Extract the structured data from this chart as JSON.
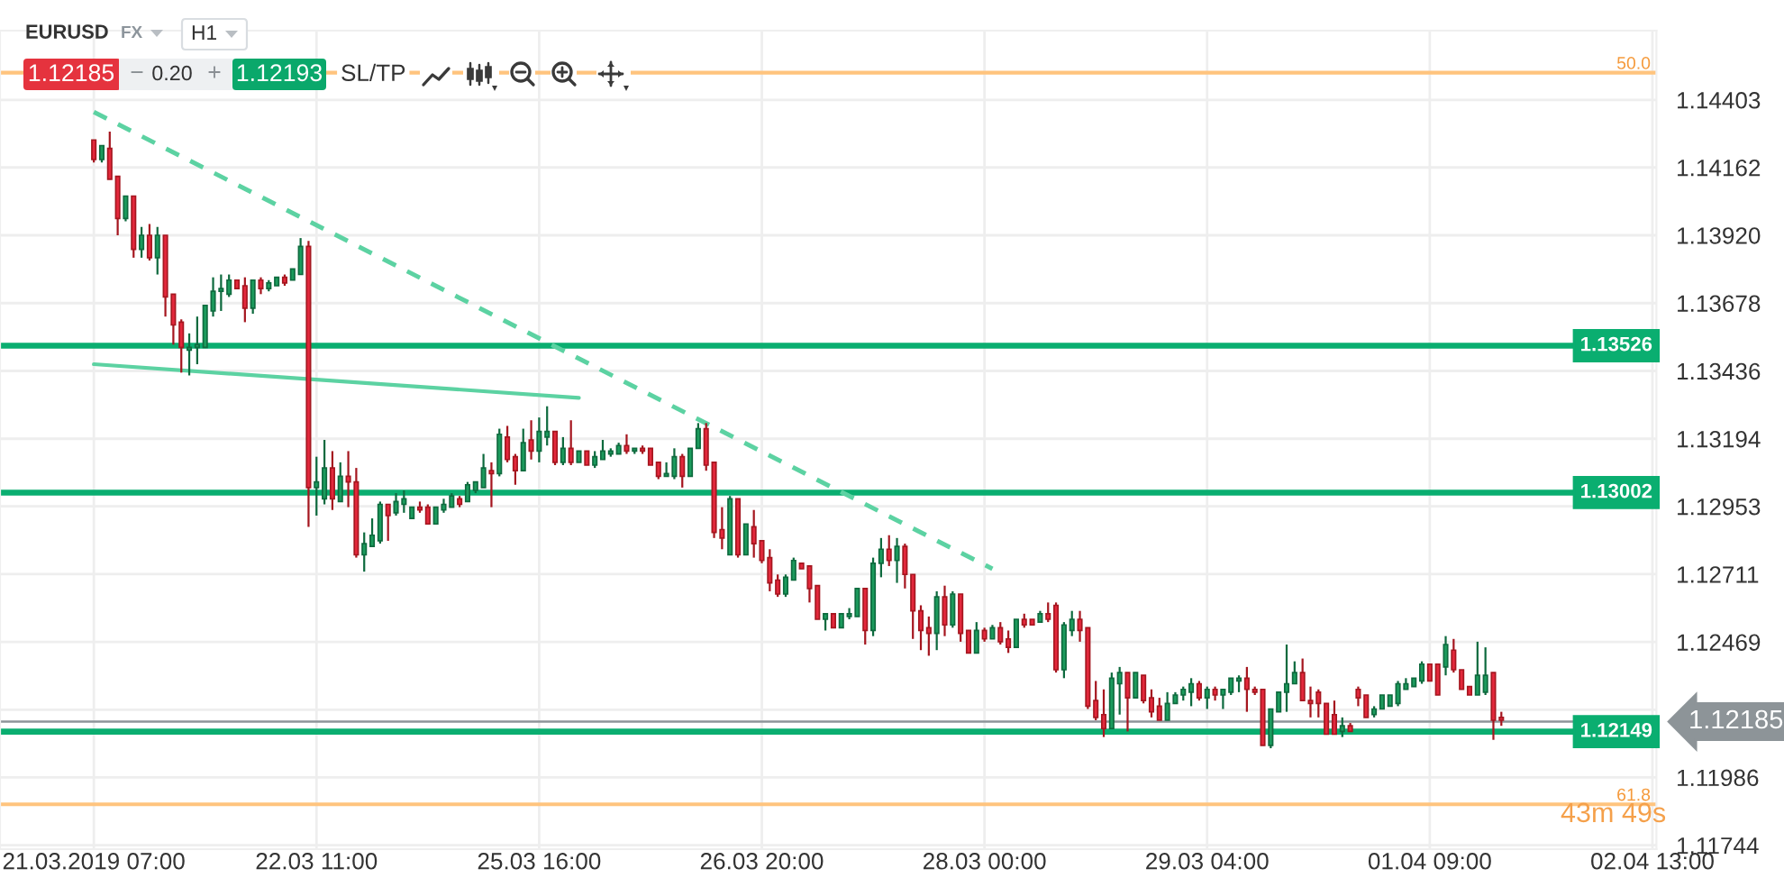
{
  "chart_data": {
    "type": "candlestick",
    "title": "EURUSD",
    "categories": [
      "21.03.2019 07:00",
      null,
      null,
      null,
      null,
      null,
      null,
      null,
      null,
      null,
      null,
      null,
      null,
      null,
      null,
      null,
      null,
      null,
      null,
      null,
      null,
      null,
      null,
      null,
      null,
      null,
      null,
      null,
      "22.03 11:00",
      null,
      null,
      null,
      null,
      null,
      null,
      null,
      null,
      null,
      null,
      null,
      null,
      null,
      null,
      null,
      null,
      null,
      null,
      null,
      null,
      null,
      null,
      null,
      null,
      null,
      null,
      null,
      "25.03 16:00",
      null,
      null,
      null,
      null,
      null,
      null,
      null,
      null,
      null,
      null,
      null,
      null,
      null,
      null,
      null,
      null,
      null,
      null,
      null,
      null,
      null,
      null,
      null,
      null,
      null,
      null,
      null,
      "26.03 20:00",
      null,
      null,
      null,
      null,
      null,
      null,
      null,
      null,
      null,
      null,
      null,
      null,
      null,
      null,
      null,
      null,
      null,
      null,
      null,
      null,
      null,
      null,
      null,
      null,
      null,
      null,
      null,
      "28.03 00:00",
      null,
      null,
      null,
      null,
      null,
      null,
      null,
      null,
      null,
      null,
      null,
      null,
      null,
      null,
      null,
      null,
      null,
      null,
      null,
      null,
      null,
      null,
      null,
      null,
      null,
      null,
      null,
      "29.03 04:00",
      null,
      null,
      null,
      null,
      null,
      null,
      null,
      null,
      null,
      null,
      null,
      null,
      null,
      null,
      null,
      null,
      null,
      null,
      null,
      null,
      null,
      null,
      null,
      null,
      null,
      null,
      null,
      "01.04 09:00",
      null,
      null,
      null,
      null,
      null,
      null,
      null,
      null,
      null,
      null,
      null,
      null,
      null,
      null,
      null,
      null,
      null,
      null,
      null,
      null,
      null,
      null,
      null,
      null,
      null,
      null,
      null,
      "02.04 13:00"
    ],
    "ohlc": [
      [
        1.1426,
        1.1426,
        1.1418,
        1.1419
      ],
      [
        1.1419,
        1.1424,
        1.1418,
        1.1424
      ],
      [
        1.1423,
        1.1429,
        1.1412,
        1.1412
      ],
      [
        1.1413,
        1.1413,
        1.1392,
        1.1398
      ],
      [
        1.1398,
        1.1406,
        1.1397,
        1.1406
      ],
      [
        1.1406,
        1.1406,
        1.1384,
        1.1387
      ],
      [
        1.1387,
        1.1395,
        1.1384,
        1.1392
      ],
      [
        1.1392,
        1.1396,
        1.1383,
        1.1384
      ],
      [
        1.1384,
        1.1395,
        1.1378,
        1.1392
      ],
      [
        1.1392,
        1.1392,
        1.1363,
        1.137
      ],
      [
        1.1371,
        1.1371,
        1.1353,
        1.136
      ],
      [
        1.1361,
        1.1362,
        1.1343,
        1.1352
      ],
      [
        1.1351,
        1.1357,
        1.1342,
        1.1352
      ],
      [
        1.1352,
        1.1363,
        1.1346,
        1.1353
      ],
      [
        1.1352,
        1.1367,
        1.1352,
        1.1367
      ],
      [
        1.1365,
        1.1377,
        1.1363,
        1.1372
      ],
      [
        1.1372,
        1.1378,
        1.1365,
        1.1373
      ],
      [
        1.1371,
        1.1378,
        1.137,
        1.1376
      ],
      [
        1.1376,
        1.1376,
        1.1373,
        1.1373
      ],
      [
        1.1374,
        1.1377,
        1.1361,
        1.1366
      ],
      [
        1.1366,
        1.1376,
        1.1364,
        1.1376
      ],
      [
        1.1376,
        1.1377,
        1.1371,
        1.1373
      ],
      [
        1.1373,
        1.1376,
        1.1372,
        1.1375
      ],
      [
        1.1374,
        1.1377,
        1.1374,
        1.1377
      ],
      [
        1.1377,
        1.1378,
        1.1374,
        1.1375
      ],
      [
        1.1376,
        1.138,
        1.1376,
        1.138
      ],
      [
        1.1378,
        1.1391,
        1.1378,
        1.1388
      ],
      [
        1.1388,
        1.139,
        1.1288,
        1.1302
      ],
      [
        1.1302,
        1.1313,
        1.1292,
        1.1304
      ],
      [
        1.1298,
        1.1319,
        1.1296,
        1.1309
      ],
      [
        1.1309,
        1.1315,
        1.1294,
        1.1298
      ],
      [
        1.1297,
        1.1311,
        1.1297,
        1.1306
      ],
      [
        1.1306,
        1.1315,
        1.1295,
        1.1304
      ],
      [
        1.1304,
        1.1309,
        1.1277,
        1.1278
      ],
      [
        1.1278,
        1.1286,
        1.1272,
        1.1282
      ],
      [
        1.1281,
        1.1291,
        1.1281,
        1.1285
      ],
      [
        1.1283,
        1.1297,
        1.1282,
        1.1296
      ],
      [
        1.1296,
        1.1296,
        1.1283,
        1.1292
      ],
      [
        1.1293,
        1.13,
        1.1292,
        1.1297
      ],
      [
        1.1296,
        1.1301,
        1.1293,
        1.1298
      ],
      [
        1.1291,
        1.1295,
        1.1291,
        1.1295
      ],
      [
        1.1295,
        1.1297,
        1.1293,
        1.1294
      ],
      [
        1.1295,
        1.1296,
        1.1289,
        1.1289
      ],
      [
        1.1289,
        1.1295,
        1.1289,
        1.1295
      ],
      [
        1.1294,
        1.1298,
        1.1293,
        1.1296
      ],
      [
        1.1295,
        1.13,
        1.1295,
        1.1299
      ],
      [
        1.1298,
        1.1299,
        1.1295,
        1.1296
      ],
      [
        1.1297,
        1.1304,
        1.1297,
        1.1303
      ],
      [
        1.1301,
        1.1304,
        1.13,
        1.1304
      ],
      [
        1.1302,
        1.1314,
        1.1302,
        1.1309
      ],
      [
        1.1308,
        1.1311,
        1.1295,
        1.1307
      ],
      [
        1.1307,
        1.1323,
        1.1306,
        1.1321
      ],
      [
        1.132,
        1.1324,
        1.1311,
        1.1312
      ],
      [
        1.1313,
        1.1314,
        1.1303,
        1.1308
      ],
      [
        1.1308,
        1.1323,
        1.1308,
        1.1318
      ],
      [
        1.1319,
        1.1326,
        1.1312,
        1.1315
      ],
      [
        1.1315,
        1.1327,
        1.1311,
        1.1322
      ],
      [
        1.132,
        1.1331,
        1.1317,
        1.1322
      ],
      [
        1.1322,
        1.1322,
        1.131,
        1.1311
      ],
      [
        1.1311,
        1.132,
        1.131,
        1.1316
      ],
      [
        1.1316,
        1.1326,
        1.131,
        1.1311
      ],
      [
        1.1311,
        1.1315,
        1.1311,
        1.1315
      ],
      [
        1.1315,
        1.1315,
        1.131,
        1.131
      ],
      [
        1.131,
        1.1315,
        1.1309,
        1.1313
      ],
      [
        1.1312,
        1.1319,
        1.1312,
        1.1315
      ],
      [
        1.1314,
        1.1316,
        1.1313,
        1.1315
      ],
      [
        1.1314,
        1.1318,
        1.1314,
        1.1317
      ],
      [
        1.1317,
        1.1321,
        1.1314,
        1.1315
      ],
      [
        1.1315,
        1.1316,
        1.1314,
        1.1316
      ],
      [
        1.1316,
        1.1317,
        1.1314,
        1.1315
      ],
      [
        1.1316,
        1.1316,
        1.131,
        1.131
      ],
      [
        1.1311,
        1.1311,
        1.1305,
        1.1306
      ],
      [
        1.1306,
        1.1311,
        1.1306,
        1.1307
      ],
      [
        1.1306,
        1.1316,
        1.1305,
        1.1313
      ],
      [
        1.1313,
        1.1314,
        1.1302,
        1.1306
      ],
      [
        1.1306,
        1.1316,
        1.1306,
        1.1316
      ],
      [
        1.1316,
        1.1325,
        1.1316,
        1.1323
      ],
      [
        1.1323,
        1.1325,
        1.1308,
        1.131
      ],
      [
        1.1311,
        1.1311,
        1.1284,
        1.1286
      ],
      [
        1.1287,
        1.1295,
        1.128,
        1.1284
      ],
      [
        1.1278,
        1.1299,
        1.1278,
        1.1298
      ],
      [
        1.1298,
        1.1298,
        1.1277,
        1.1278
      ],
      [
        1.1278,
        1.1289,
        1.1278,
        1.1289
      ],
      [
        1.1288,
        1.1294,
        1.1277,
        1.1282
      ],
      [
        1.1283,
        1.1283,
        1.1275,
        1.1276
      ],
      [
        1.1277,
        1.128,
        1.1265,
        1.1268
      ],
      [
        1.1269,
        1.1271,
        1.1263,
        1.1264
      ],
      [
        1.1264,
        1.1271,
        1.1263,
        1.127
      ],
      [
        1.1269,
        1.1277,
        1.1269,
        1.1276
      ],
      [
        1.1275,
        1.1275,
        1.1273,
        1.1273
      ],
      [
        1.1274,
        1.1274,
        1.1261,
        1.1266
      ],
      [
        1.1267,
        1.1267,
        1.1255,
        1.1255
      ],
      [
        1.1255,
        1.1257,
        1.1251,
        1.1257
      ],
      [
        1.1257,
        1.1257,
        1.1252,
        1.1252
      ],
      [
        1.1252,
        1.1257,
        1.1252,
        1.1257
      ],
      [
        1.1256,
        1.1259,
        1.1255,
        1.1257
      ],
      [
        1.1256,
        1.1266,
        1.1256,
        1.1266
      ],
      [
        1.1266,
        1.1266,
        1.1246,
        1.1251
      ],
      [
        1.1251,
        1.1277,
        1.1249,
        1.1275
      ],
      [
        1.1275,
        1.1284,
        1.127,
        1.128
      ],
      [
        1.128,
        1.1285,
        1.1274,
        1.1276
      ],
      [
        1.1276,
        1.1284,
        1.1268,
        1.1281
      ],
      [
        1.1281,
        1.1282,
        1.1266,
        1.1271
      ],
      [
        1.1271,
        1.1271,
        1.1248,
        1.1258
      ],
      [
        1.1258,
        1.126,
        1.1244,
        1.1251
      ],
      [
        1.1252,
        1.1256,
        1.1242,
        1.125
      ],
      [
        1.125,
        1.1265,
        1.1244,
        1.1263
      ],
      [
        1.1263,
        1.1267,
        1.1249,
        1.1253
      ],
      [
        1.1253,
        1.1265,
        1.1252,
        1.1264
      ],
      [
        1.1264,
        1.1264,
        1.1247,
        1.125
      ],
      [
        1.1251,
        1.1251,
        1.1243,
        1.1243
      ],
      [
        1.1243,
        1.1254,
        1.1243,
        1.1251
      ],
      [
        1.1251,
        1.1252,
        1.1247,
        1.1248
      ],
      [
        1.1248,
        1.1253,
        1.1248,
        1.1252
      ],
      [
        1.1252,
        1.1254,
        1.1246,
        1.1247
      ],
      [
        1.1248,
        1.1251,
        1.1243,
        1.1245
      ],
      [
        1.1245,
        1.1255,
        1.1245,
        1.1255
      ],
      [
        1.1255,
        1.1257,
        1.1252,
        1.1253
      ],
      [
        1.1255,
        1.1255,
        1.1253,
        1.1253
      ],
      [
        1.1254,
        1.1258,
        1.1254,
        1.1257
      ],
      [
        1.1257,
        1.1261,
        1.1254,
        1.1255
      ],
      [
        1.126,
        1.1261,
        1.1236,
        1.1237
      ],
      [
        1.1237,
        1.1254,
        1.1234,
        1.1253
      ],
      [
        1.1251,
        1.1258,
        1.1249,
        1.1255
      ],
      [
        1.1255,
        1.1258,
        1.1247,
        1.1251
      ],
      [
        1.1252,
        1.1252,
        1.1223,
        1.1224
      ],
      [
        1.1226,
        1.1233,
        1.1219,
        1.122
      ],
      [
        1.1221,
        1.123,
        1.1213,
        1.1216
      ],
      [
        1.1216,
        1.1236,
        1.1216,
        1.1234
      ],
      [
        1.1232,
        1.1238,
        1.1221,
        1.1236
      ],
      [
        1.1236,
        1.1236,
        1.1215,
        1.1227
      ],
      [
        1.1227,
        1.1236,
        1.1227,
        1.1236
      ],
      [
        1.1235,
        1.1235,
        1.1225,
        1.1226
      ],
      [
        1.1227,
        1.123,
        1.122,
        1.1222
      ],
      [
        1.1224,
        1.1227,
        1.1219,
        1.1219
      ],
      [
        1.1219,
        1.1229,
        1.1219,
        1.1225
      ],
      [
        1.1225,
        1.1229,
        1.1225,
        1.1228
      ],
      [
        1.1228,
        1.1231,
        1.1226,
        1.123
      ],
      [
        1.1229,
        1.1234,
        1.1224,
        1.1232
      ],
      [
        1.1232,
        1.1233,
        1.1226,
        1.1227
      ],
      [
        1.1227,
        1.1231,
        1.1223,
        1.123
      ],
      [
        1.123,
        1.1231,
        1.1226,
        1.1228
      ],
      [
        1.1228,
        1.123,
        1.1223,
        1.123
      ],
      [
        1.1229,
        1.1234,
        1.1228,
        1.1234
      ],
      [
        1.1233,
        1.1235,
        1.1229,
        1.1234
      ],
      [
        1.1234,
        1.1238,
        1.1222,
        1.123
      ],
      [
        1.123,
        1.1231,
        1.1228,
        1.1229
      ],
      [
        1.123,
        1.123,
        1.121,
        1.121
      ],
      [
        1.121,
        1.1223,
        1.1209,
        1.1223
      ],
      [
        1.1222,
        1.1229,
        1.1222,
        1.1229
      ],
      [
        1.1229,
        1.1246,
        1.1222,
        1.1232
      ],
      [
        1.1232,
        1.124,
        1.1232,
        1.1236
      ],
      [
        1.1236,
        1.1241,
        1.1226,
        1.1226
      ],
      [
        1.1226,
        1.1231,
        1.122,
        1.1225
      ],
      [
        1.1229,
        1.123,
        1.122,
        1.1225
      ],
      [
        1.1225,
        1.1225,
        1.1214,
        1.1214
      ],
      [
        1.1221,
        1.1226,
        1.1214,
        1.1214
      ],
      [
        1.1215,
        1.122,
        1.1213,
        1.1217
      ],
      [
        1.1217,
        1.1218,
        1.1215,
        1.1215
      ],
      [
        1.123,
        1.1231,
        1.1224,
        1.1227
      ],
      [
        1.1228,
        1.1228,
        1.122,
        1.122
      ],
      [
        1.1221,
        1.1224,
        1.122,
        1.1223
      ],
      [
        1.1223,
        1.1228,
        1.1223,
        1.1228
      ],
      [
        1.1224,
        1.1228,
        1.1224,
        1.1228
      ],
      [
        1.1225,
        1.1233,
        1.1224,
        1.1232
      ],
      [
        1.123,
        1.1234,
        1.123,
        1.1232
      ],
      [
        1.1231,
        1.1234,
        1.1231,
        1.1234
      ],
      [
        1.1233,
        1.124,
        1.1232,
        1.1239
      ],
      [
        1.1239,
        1.1239,
        1.1233,
        1.1233
      ],
      [
        1.1239,
        1.1239,
        1.1228,
        1.1228
      ],
      [
        1.1238,
        1.1249,
        1.1235,
        1.1246
      ],
      [
        1.1244,
        1.1248,
        1.1236,
        1.1237
      ],
      [
        1.1237,
        1.1237,
        1.123,
        1.123
      ],
      [
        1.1231,
        1.1231,
        1.1228,
        1.1228
      ],
      [
        1.1228,
        1.1247,
        1.1228,
        1.1235
      ],
      [
        1.1229,
        1.1245,
        1.1228,
        1.1235
      ],
      [
        1.1236,
        1.1236,
        1.1212,
        1.1219
      ],
      [
        1.122,
        1.1222,
        1.1217,
        1.1219
      ],
      null,
      null,
      null,
      null,
      null,
      null,
      null,
      null,
      null,
      null,
      null,
      null,
      null,
      null,
      null,
      null,
      null,
      null,
      null
    ],
    "series": [
      {
        "type": "line",
        "color": "#5cd2a2",
        "line_style": "dashed",
        "values": [
          1.1436,
          null,
          null,
          null,
          null,
          null,
          null,
          null,
          null,
          null,
          null,
          null,
          null,
          null,
          null,
          null,
          null,
          null,
          null,
          null,
          null,
          null,
          null,
          null,
          null,
          null,
          null,
          null,
          null,
          null,
          null,
          null,
          null,
          null,
          null,
          null,
          null,
          null,
          null,
          null,
          null,
          null,
          null,
          null,
          null,
          null,
          null,
          null,
          null,
          null,
          null,
          null,
          null,
          null,
          null,
          null,
          null,
          null,
          null,
          null,
          null,
          null,
          null,
          null,
          null,
          null,
          null,
          null,
          null,
          null,
          null,
          null,
          null,
          null,
          null,
          null,
          null,
          null,
          null,
          null,
          null,
          null,
          null,
          null,
          null,
          null,
          null,
          null,
          null,
          null,
          null,
          null,
          null,
          null,
          null,
          null,
          null,
          null,
          null,
          null,
          null,
          null,
          null,
          null,
          null,
          null,
          null,
          null,
          null,
          null,
          null,
          null,
          null,
          1.1273,
          null,
          null,
          null,
          null,
          null,
          null,
          null,
          null,
          null,
          null,
          null,
          null,
          null,
          null,
          null,
          null,
          null,
          null,
          null,
          null,
          null,
          null,
          null,
          null,
          null,
          null,
          null,
          null,
          null,
          null,
          null,
          null,
          null,
          null,
          null,
          null,
          null,
          null,
          null,
          null,
          null,
          null,
          null,
          null,
          null,
          null,
          null,
          null,
          null,
          null,
          null,
          null,
          null,
          null,
          null,
          null,
          null,
          null,
          null,
          null,
          null,
          null,
          null,
          null,
          null,
          null,
          null,
          null,
          null,
          null,
          null,
          null,
          null,
          null,
          null,
          null,
          null,
          null,
          null,
          null,
          null,
          null,
          null
        ]
      },
      {
        "type": "line",
        "color": "#5cd2a2",
        "line_style": "solid",
        "values": [
          1.1346,
          null,
          null,
          null,
          null,
          null,
          null,
          null,
          null,
          null,
          null,
          null,
          null,
          null,
          null,
          null,
          null,
          null,
          null,
          null,
          null,
          null,
          null,
          null,
          null,
          null,
          null,
          null,
          null,
          null,
          null,
          null,
          null,
          null,
          null,
          null,
          null,
          null,
          null,
          null,
          null,
          null,
          null,
          null,
          null,
          null,
          null,
          null,
          null,
          null,
          null,
          null,
          null,
          null,
          null,
          null,
          null,
          null,
          null,
          null,
          null,
          1.1334,
          null,
          null,
          null,
          null,
          null,
          null,
          null,
          null,
          null,
          null,
          null,
          null,
          null,
          null,
          null,
          null,
          null,
          null,
          null,
          null,
          null,
          null,
          null,
          null,
          null,
          null,
          null,
          null,
          null,
          null,
          null,
          null,
          null,
          null,
          null,
          null,
          null,
          null,
          null,
          null,
          null,
          null,
          null,
          null,
          null,
          null,
          null,
          null,
          null,
          null,
          null,
          null,
          null,
          null,
          null,
          null,
          null,
          null,
          null,
          null,
          null,
          null,
          null,
          null,
          null,
          null,
          null,
          null,
          null,
          null,
          null,
          null,
          null,
          null,
          null,
          null,
          null,
          null,
          null,
          null,
          null,
          null,
          null,
          null,
          null,
          null,
          null,
          null,
          null,
          null,
          null,
          null,
          null,
          null,
          null,
          null,
          null,
          null,
          null,
          null,
          null,
          null,
          null,
          null,
          null,
          null,
          null,
          null,
          null,
          null,
          null,
          null,
          null,
          null,
          null,
          null,
          null,
          null,
          null,
          null,
          null,
          null,
          null,
          null,
          null,
          null,
          null,
          null,
          null,
          null,
          null,
          null,
          null,
          null,
          null
        ]
      }
    ],
    "ylim": [
      1.1173,
      1.1465
    ],
    "yticks": [
      1.14403,
      1.14162,
      {
        "value": 1.1392,
        "label": "1.13920"
      },
      1.13678,
      1.13436,
      1.13194,
      1.12953,
      1.12711,
      1.12469,
      {
        "value": 1.12227,
        "label": null
      },
      1.11986,
      1.11744
    ],
    "ref_lines": [
      {
        "axis": "y",
        "value": 1.13526,
        "label": "1.13526",
        "color": "#0aae70"
      },
      {
        "axis": "y",
        "value": 1.13002,
        "label": "1.13002",
        "color": "#0aae70"
      },
      {
        "axis": "y",
        "value": 1.12149,
        "label": "1.12149",
        "color": "#0aae70"
      },
      {
        "axis": "y",
        "value": 1.12185,
        "label": "1.12185",
        "color": "#8d9498"
      },
      {
        "axis": "y",
        "value": 1.145,
        "color": "#ffc47e"
      },
      {
        "axis": "y",
        "value": 1.1189,
        "color": "#ffc47e"
      }
    ],
    "annotations": [
      "FX",
      "H1",
      "1.12185",
      "−",
      "0.20",
      "+",
      "1.12193",
      "SL/TP",
      {
        "text": "50.0",
        "y": 1.145
      },
      {
        "text": "61.8",
        "y": 1.1189
      },
      "43m 49s"
    ],
    "grid": true
  }
}
